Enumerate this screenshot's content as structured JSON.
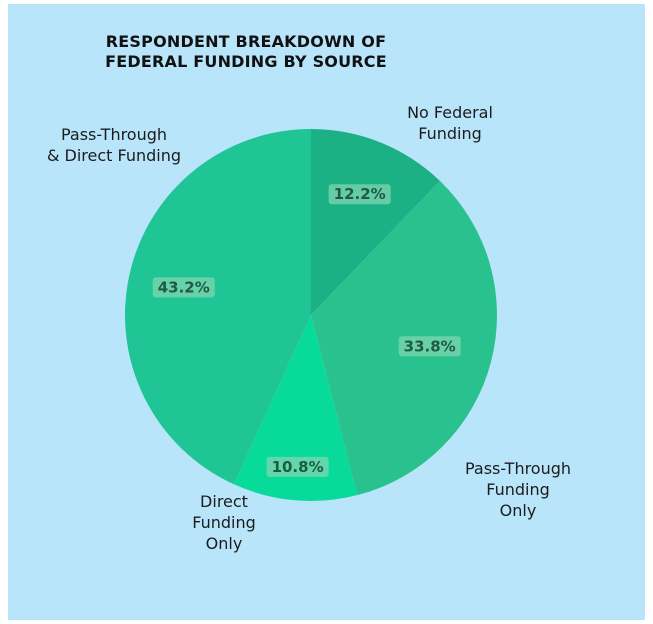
{
  "title_lines": [
    "RESPONDENT BREAKDOWN OF",
    "FEDERAL FUNDING BY SOURCE"
  ],
  "chart_data": {
    "type": "pie",
    "title": "RESPONDENT BREAKDOWN OF FEDERAL FUNDING BY SOURCE",
    "slices": [
      {
        "label": "No Federal Funding",
        "label_lines": [
          "No Federal",
          "Funding"
        ],
        "value": 12.2,
        "display": "12.2%",
        "color": "#1bb185"
      },
      {
        "label": "Pass-Through Funding Only",
        "label_lines": [
          "Pass-Through",
          "Funding",
          "Only"
        ],
        "value": 33.8,
        "display": "33.8%",
        "color": "#29c28e"
      },
      {
        "label": "Direct Funding Only",
        "label_lines": [
          "Direct",
          "Funding",
          "Only"
        ],
        "value": 10.8,
        "display": "10.8%",
        "color": "#08da9a"
      },
      {
        "label": "Pass-Through & Direct Funding",
        "label_lines": [
          "Pass-Through",
          "& Direct Funding"
        ],
        "value": 43.2,
        "display": "43.2%",
        "color": "#20c595"
      }
    ],
    "start_angle": "12 o'clock",
    "direction": "clockwise",
    "legend": "none"
  },
  "colors": {
    "background": "#b9e5fb",
    "label_box": "#7fd6b0",
    "label_text": "#1e5a44"
  }
}
